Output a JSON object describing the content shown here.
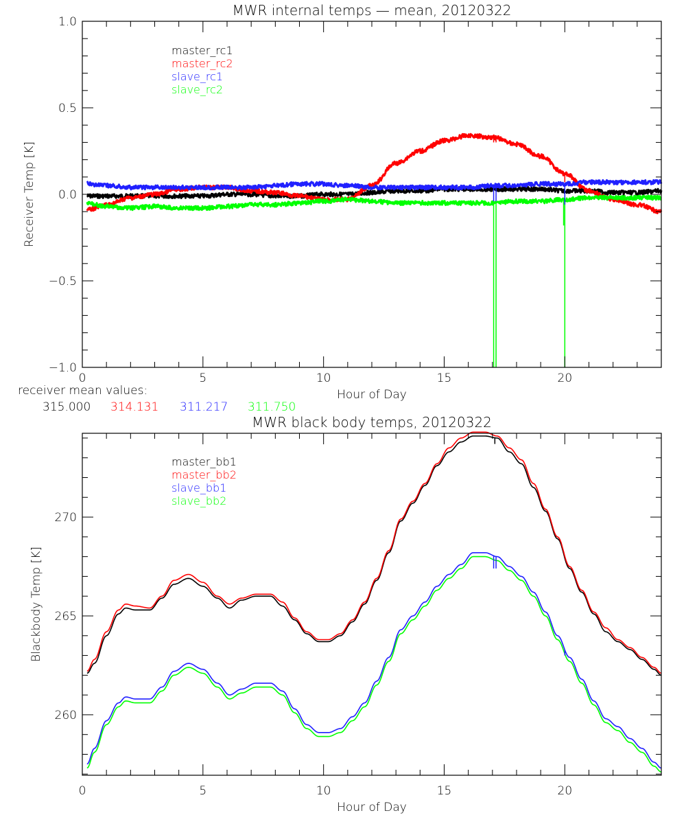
{
  "chart_data": [
    {
      "type": "line",
      "title": "MWR internal temps — mean, 20120322",
      "xlabel": "Hour of Day",
      "ylabel": "Receiver Temp [K]",
      "xlim": [
        0,
        24
      ],
      "ylim": [
        -1.0,
        1.0
      ],
      "xticks": [
        0,
        5,
        10,
        15,
        20
      ],
      "xtick_labels": [
        "0",
        "5",
        "10",
        "15",
        "20"
      ],
      "yticks": [
        -1.0,
        -0.5,
        0.0,
        0.5,
        1.0
      ],
      "ytick_labels": [
        "−1.0",
        "−0.5",
        "0.0",
        "0.5",
        "1.0"
      ],
      "grid": false,
      "legend_position": "top-left",
      "x": [
        0.2,
        1,
        2,
        3,
        4,
        5,
        6,
        7,
        8,
        9,
        10,
        11,
        12,
        13,
        14,
        15,
        16,
        17,
        18,
        19,
        20,
        21,
        22,
        23,
        24
      ],
      "series": [
        {
          "name": "master_rc1",
          "color": "#000000",
          "values": [
            -0.01,
            -0.01,
            -0.01,
            -0.01,
            -0.01,
            -0.01,
            0.0,
            0.0,
            -0.01,
            -0.01,
            0.0,
            0.0,
            0.01,
            0.02,
            0.02,
            0.03,
            0.03,
            0.03,
            0.03,
            0.03,
            0.02,
            0.02,
            0.01,
            0.01,
            0.02
          ]
        },
        {
          "name": "master_rc2",
          "color": "#ff0000",
          "values": [
            -0.09,
            -0.06,
            -0.02,
            0.0,
            0.03,
            0.04,
            0.04,
            0.02,
            0.01,
            -0.01,
            -0.03,
            -0.03,
            0.05,
            0.18,
            0.25,
            0.31,
            0.34,
            0.33,
            0.29,
            0.22,
            0.12,
            0.02,
            -0.03,
            -0.06,
            -0.1
          ]
        },
        {
          "name": "slave_rc1",
          "color": "#2020ff",
          "values": [
            0.06,
            0.05,
            0.04,
            0.04,
            0.04,
            0.04,
            0.04,
            0.04,
            0.05,
            0.06,
            0.06,
            0.05,
            0.04,
            0.04,
            0.04,
            0.04,
            0.04,
            0.05,
            0.05,
            0.06,
            0.06,
            0.07,
            0.07,
            0.07,
            0.07
          ]
        },
        {
          "name": "slave_rc2",
          "color": "#00ff00",
          "values": [
            -0.05,
            -0.07,
            -0.08,
            -0.07,
            -0.08,
            -0.08,
            -0.07,
            -0.06,
            -0.06,
            -0.05,
            -0.04,
            -0.03,
            -0.04,
            -0.05,
            -0.05,
            -0.05,
            -0.05,
            -0.05,
            -0.04,
            -0.04,
            -0.03,
            -0.02,
            -0.02,
            -0.02,
            -0.02
          ]
        }
      ],
      "spikes": [
        {
          "series": "slave_rc2",
          "x": 17.05,
          "to": -1.0
        },
        {
          "series": "slave_rc2",
          "x": 17.15,
          "to": -1.0
        },
        {
          "series": "slave_rc2",
          "x": 20.0,
          "to": -1.0
        },
        {
          "series": "slave_rc2",
          "x": 19.95,
          "to": -0.18
        },
        {
          "series": "slave_rc1",
          "x": 17.05,
          "to": -0.04
        },
        {
          "series": "slave_rc1",
          "x": 17.15,
          "to": -0.04
        },
        {
          "series": "slave_rc1",
          "x": 20.0,
          "to": -0.06
        },
        {
          "series": "master_rc2",
          "x": 17.05,
          "to": 0.3
        },
        {
          "series": "master_rc2",
          "x": 17.15,
          "to": 0.3
        },
        {
          "series": "master_rc2",
          "x": 20.0,
          "to": 0.07
        }
      ],
      "annotations": {
        "label": "receiver mean values:",
        "values": [
          {
            "text": "315.000",
            "color": "#000000"
          },
          {
            "text": "314.131",
            "color": "#ff0000"
          },
          {
            "text": "311.217",
            "color": "#2020ff"
          },
          {
            "text": "311.750",
            "color": "#00ff00"
          }
        ]
      }
    },
    {
      "type": "line",
      "title": "MWR black body temps, 20120322",
      "xlabel": "Hour of Day",
      "ylabel": "Blackbody Temp [K]",
      "xlim": [
        0,
        24
      ],
      "ylim": [
        256.94,
        274.24
      ],
      "xticks": [
        0,
        5,
        10,
        15,
        20
      ],
      "xtick_labels": [
        "0",
        "5",
        "10",
        "15",
        "20"
      ],
      "yticks": [
        260,
        265,
        270
      ],
      "ytick_labels": [
        "260",
        "265",
        "270"
      ],
      "grid": false,
      "legend_position": "top-left",
      "x": [
        0.2,
        0.5,
        1.0,
        1.5,
        1.8,
        2.2,
        2.8,
        3.3,
        3.8,
        4.4,
        5.0,
        5.6,
        6.1,
        6.6,
        7.2,
        7.8,
        8.3,
        8.8,
        9.3,
        9.8,
        10.2,
        10.7,
        11.2,
        11.7,
        12.2,
        12.7,
        13.2,
        13.7,
        14.2,
        14.7,
        15.2,
        15.7,
        16.2,
        16.7,
        17.2,
        17.7,
        18.2,
        18.7,
        19.2,
        19.7,
        20.2,
        20.7,
        21.2,
        21.7,
        22.2,
        22.7,
        23.2,
        23.7,
        24.0
      ],
      "series": [
        {
          "name": "master_bb1",
          "color": "#000000",
          "values": [
            262.1,
            262.6,
            264.0,
            265.1,
            265.4,
            265.3,
            265.3,
            265.9,
            266.6,
            266.9,
            266.5,
            265.9,
            265.4,
            265.8,
            266.0,
            266.0,
            265.5,
            264.8,
            264.1,
            263.7,
            263.7,
            264.0,
            264.7,
            265.6,
            266.8,
            268.2,
            269.8,
            270.7,
            271.6,
            272.6,
            273.3,
            273.8,
            274.1,
            274.1,
            274.0,
            273.3,
            272.7,
            271.5,
            270.3,
            268.9,
            267.4,
            266.2,
            265.1,
            264.2,
            263.7,
            263.3,
            262.8,
            262.3,
            262.0
          ]
        },
        {
          "name": "master_bb2",
          "color": "#ff0000",
          "values": [
            262.2,
            262.8,
            264.2,
            265.3,
            265.6,
            265.5,
            265.4,
            266.0,
            266.8,
            267.1,
            266.7,
            266.0,
            265.6,
            265.9,
            266.1,
            266.1,
            265.7,
            264.9,
            264.2,
            263.8,
            263.8,
            264.1,
            264.8,
            265.7,
            266.9,
            268.3,
            269.9,
            270.8,
            271.7,
            272.7,
            273.5,
            274.0,
            274.3,
            274.3,
            274.1,
            273.5,
            272.9,
            271.7,
            270.4,
            269.0,
            267.5,
            266.3,
            265.2,
            264.4,
            263.8,
            263.4,
            262.9,
            262.4,
            262.1
          ]
        },
        {
          "name": "slave_bb1",
          "color": "#2020ff",
          "values": [
            257.5,
            258.3,
            259.7,
            260.6,
            260.9,
            260.8,
            260.8,
            261.4,
            262.2,
            262.6,
            262.3,
            261.6,
            261.0,
            261.3,
            261.6,
            261.6,
            261.2,
            260.3,
            259.5,
            259.1,
            259.1,
            259.3,
            259.9,
            260.6,
            261.7,
            262.9,
            264.3,
            265.0,
            265.7,
            266.5,
            267.1,
            267.6,
            268.2,
            268.2,
            268.0,
            267.5,
            267.0,
            266.2,
            265.2,
            264.0,
            262.9,
            261.8,
            260.7,
            259.8,
            259.4,
            258.8,
            258.3,
            257.6,
            257.3
          ]
        },
        {
          "name": "slave_bb2",
          "color": "#00ff00",
          "values": [
            257.3,
            258.1,
            259.5,
            260.4,
            260.7,
            260.6,
            260.6,
            261.2,
            262.0,
            262.4,
            262.1,
            261.4,
            260.8,
            261.1,
            261.4,
            261.4,
            261.0,
            260.1,
            259.3,
            258.9,
            258.9,
            259.1,
            259.7,
            260.4,
            261.5,
            262.7,
            264.1,
            264.8,
            265.5,
            266.3,
            266.9,
            267.4,
            268.0,
            268.0,
            267.8,
            267.3,
            266.8,
            266.0,
            265.0,
            263.8,
            262.7,
            261.6,
            260.5,
            259.6,
            259.2,
            258.6,
            258.1,
            257.4,
            257.1
          ]
        }
      ],
      "spikes": [
        {
          "series": "slave_bb1",
          "x": 17.05,
          "to": 267.4
        },
        {
          "series": "slave_bb1",
          "x": 17.15,
          "to": 267.4
        },
        {
          "series": "slave_bb1",
          "x": 20.0,
          "to": 263.0
        },
        {
          "series": "master_bb1",
          "x": 17.1,
          "to": 273.7
        }
      ]
    }
  ]
}
